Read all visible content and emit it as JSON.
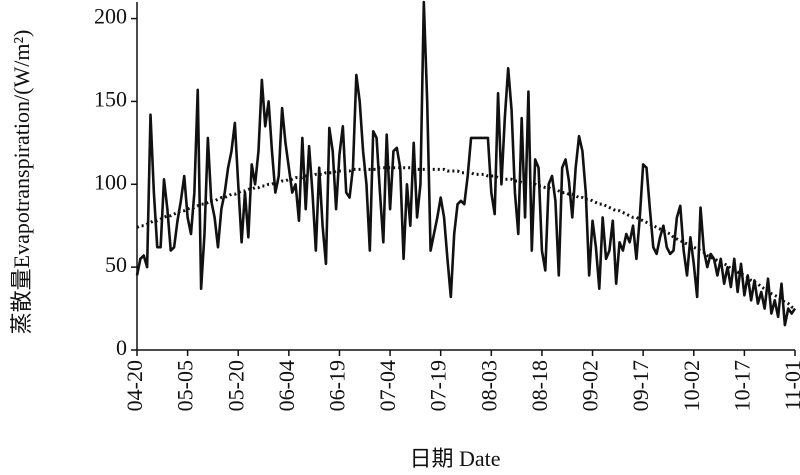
{
  "chart_data": {
    "type": "line",
    "x_label": "日期 Date",
    "y_label": "蒸散量Evapotranspiration/(W/m²)",
    "categories": [
      "04-20",
      null,
      null,
      null,
      null,
      null,
      null,
      null,
      null,
      null,
      null,
      null,
      null,
      null,
      null,
      "05-05",
      null,
      null,
      null,
      null,
      null,
      null,
      null,
      null,
      null,
      null,
      null,
      null,
      null,
      null,
      "05-20",
      null,
      null,
      null,
      null,
      null,
      null,
      null,
      null,
      null,
      null,
      null,
      null,
      null,
      null,
      "06-04",
      null,
      null,
      null,
      null,
      null,
      null,
      null,
      null,
      null,
      null,
      null,
      null,
      null,
      null,
      "06-19",
      null,
      null,
      null,
      null,
      null,
      null,
      null,
      null,
      null,
      null,
      null,
      null,
      null,
      null,
      "07-04",
      null,
      null,
      null,
      null,
      null,
      null,
      null,
      null,
      null,
      null,
      null,
      null,
      null,
      null,
      "07-19",
      null,
      null,
      null,
      null,
      null,
      null,
      null,
      null,
      null,
      null,
      null,
      null,
      null,
      null,
      "08-03",
      null,
      null,
      null,
      null,
      null,
      null,
      null,
      null,
      null,
      null,
      null,
      null,
      null,
      null,
      "08-18",
      null,
      null,
      null,
      null,
      null,
      null,
      null,
      null,
      null,
      null,
      null,
      null,
      null,
      null,
      "09-02",
      null,
      null,
      null,
      null,
      null,
      null,
      null,
      null,
      null,
      null,
      null,
      null,
      null,
      null,
      "09-17",
      null,
      null,
      null,
      null,
      null,
      null,
      null,
      null,
      null,
      null,
      null,
      null,
      null,
      null,
      "10-02",
      null,
      null,
      null,
      null,
      null,
      null,
      null,
      null,
      null,
      null,
      null,
      null,
      null,
      null,
      "10-17",
      null,
      null,
      null,
      null,
      null,
      null,
      null,
      null,
      null,
      null,
      null,
      null,
      null,
      null,
      "11-01"
    ],
    "series": [
      {
        "color": "#111111",
        "dash": "solid",
        "values": [
          45,
          55,
          57,
          50,
          142,
          95,
          62,
          62,
          103,
          85,
          60,
          62,
          78,
          90,
          105,
          80,
          70,
          95,
          157,
          37,
          70,
          128,
          90,
          80,
          62,
          85,
          95,
          110,
          120,
          137,
          100,
          65,
          95,
          68,
          112,
          100,
          120,
          163,
          135,
          150,
          120,
          95,
          105,
          146,
          125,
          110,
          95,
          100,
          78,
          128,
          85,
          123,
          95,
          60,
          110,
          75,
          52,
          134,
          120,
          85,
          118,
          135,
          95,
          92,
          110,
          166,
          150,
          120,
          100,
          60,
          132,
          128,
          95,
          65,
          130,
          85,
          120,
          122,
          110,
          55,
          100,
          75,
          125,
          80,
          100,
          210,
          150,
          60,
          70,
          80,
          92,
          80,
          55,
          32,
          70,
          88,
          90,
          88,
          105,
          128,
          128,
          128,
          128,
          128,
          128,
          95,
          82,
          155,
          100,
          140,
          170,
          145,
          95,
          70,
          140,
          80,
          156,
          60,
          115,
          110,
          60,
          48,
          100,
          105,
          90,
          45,
          110,
          115,
          102,
          80,
          110,
          129,
          120,
          95,
          45,
          78,
          62,
          37,
          80,
          55,
          60,
          78,
          40,
          65,
          60,
          70,
          65,
          75,
          55,
          80,
          112,
          110,
          85,
          62,
          58,
          68,
          75,
          62,
          58,
          60,
          80,
          87,
          60,
          45,
          68,
          52,
          32,
          86,
          60,
          50,
          58,
          55,
          45,
          55,
          40,
          50,
          38,
          55,
          35,
          52,
          33,
          45,
          30,
          42,
          28,
          35,
          25,
          43,
          22,
          30,
          20,
          40,
          15,
          25,
          22,
          25
        ]
      },
      {
        "color": "#111111",
        "dash": "dotted",
        "values": [
          74,
          75,
          75,
          76,
          77,
          78,
          78,
          79,
          80,
          81,
          81,
          82,
          83,
          84,
          84,
          85,
          86,
          86,
          87,
          88,
          88,
          89,
          90,
          90,
          91,
          92,
          92,
          93,
          94,
          94,
          95,
          96,
          96,
          97,
          97,
          98,
          98,
          99,
          99,
          100,
          100,
          101,
          101,
          102,
          102,
          103,
          103,
          104,
          104,
          104,
          105,
          105,
          105,
          106,
          106,
          106,
          107,
          107,
          107,
          108,
          108,
          108,
          108,
          108,
          109,
          109,
          109,
          109,
          109,
          109,
          109,
          109,
          110,
          110,
          110,
          110,
          110,
          110,
          110,
          110,
          110,
          110,
          110,
          109,
          109,
          109,
          109,
          109,
          109,
          109,
          109,
          109,
          108,
          108,
          108,
          108,
          107,
          107,
          107,
          107,
          106,
          106,
          106,
          106,
          105,
          105,
          105,
          104,
          104,
          103,
          103,
          103,
          102,
          102,
          101,
          101,
          101,
          100,
          100,
          99,
          99,
          98,
          98,
          97,
          97,
          96,
          95,
          95,
          94,
          94,
          93,
          92,
          92,
          91,
          91,
          90,
          89,
          88,
          88,
          87,
          86,
          85,
          84,
          84,
          83,
          82,
          81,
          80,
          80,
          79,
          78,
          77,
          76,
          75,
          74,
          73,
          72,
          71,
          70,
          68,
          67,
          66,
          65,
          64,
          63,
          62,
          61,
          60,
          59,
          57,
          56,
          55,
          54,
          53,
          52,
          51,
          49,
          48,
          47,
          46,
          45,
          44,
          42,
          41,
          40,
          38,
          37,
          36,
          34,
          33,
          32,
          30,
          29,
          28,
          26,
          25
        ]
      }
    ],
    "ylim": [
      0,
      210
    ],
    "yticks": [
      0,
      50,
      100,
      150,
      200
    ]
  }
}
